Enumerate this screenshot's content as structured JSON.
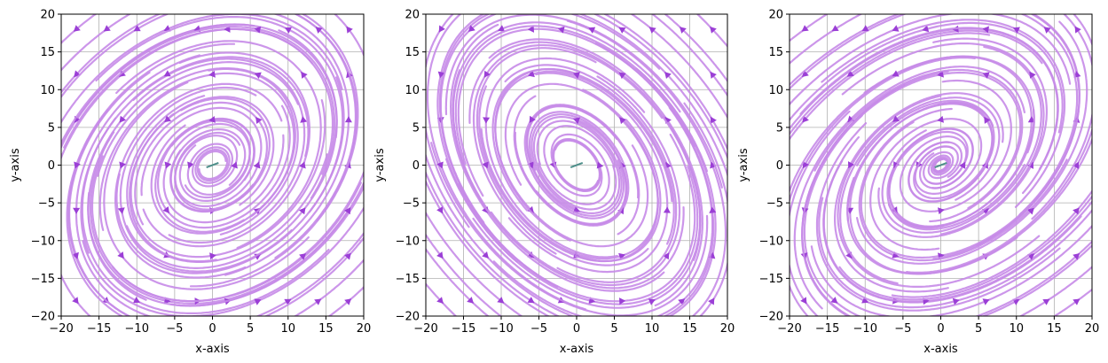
{
  "chart_data": [
    {
      "type": "streamplot",
      "xlabel": "x-axis",
      "ylabel": "y-axis",
      "xlim": [
        -20,
        20
      ],
      "ylim": [
        -20,
        20
      ],
      "xticks": [
        "−20",
        "−15",
        "−10",
        "−5",
        "0",
        "5",
        "10",
        "15",
        "20"
      ],
      "yticks": [
        "−20",
        "−15",
        "−10",
        "−5",
        "0",
        "5",
        "10",
        "15",
        "20"
      ],
      "grid": true,
      "field": {
        "A": [
          [
            0.35,
            -1.0
          ],
          [
            1.0,
            -0.15
          ]
        ]
      },
      "seeds": [
        [
          -18,
          -18
        ],
        [
          -14,
          -18
        ],
        [
          -10,
          -18
        ],
        [
          -6,
          -18
        ],
        [
          -2,
          -18
        ],
        [
          2,
          -18
        ],
        [
          6,
          -18
        ],
        [
          10,
          -18
        ],
        [
          14,
          -18
        ],
        [
          18,
          -18
        ],
        [
          -18,
          -12
        ],
        [
          -12,
          -12
        ],
        [
          -6,
          -12
        ],
        [
          0,
          -12
        ],
        [
          6,
          -12
        ],
        [
          12,
          -12
        ],
        [
          18,
          -12
        ],
        [
          -18,
          -6
        ],
        [
          -12,
          -6
        ],
        [
          -6,
          -6
        ],
        [
          0,
          -6
        ],
        [
          6,
          -6
        ],
        [
          12,
          -6
        ],
        [
          18,
          -6
        ],
        [
          -18,
          0
        ],
        [
          -12,
          0
        ],
        [
          -6,
          0
        ],
        [
          -3,
          0
        ],
        [
          3,
          0
        ],
        [
          6,
          0
        ],
        [
          12,
          0
        ],
        [
          18,
          0
        ],
        [
          -18,
          6
        ],
        [
          -12,
          6
        ],
        [
          -6,
          6
        ],
        [
          0,
          6
        ],
        [
          6,
          6
        ],
        [
          12,
          6
        ],
        [
          18,
          6
        ],
        [
          -18,
          12
        ],
        [
          -12,
          12
        ],
        [
          -6,
          12
        ],
        [
          0,
          12
        ],
        [
          6,
          12
        ],
        [
          12,
          12
        ],
        [
          18,
          12
        ],
        [
          -18,
          18
        ],
        [
          -14,
          18
        ],
        [
          -10,
          18
        ],
        [
          -6,
          18
        ],
        [
          -2,
          18
        ],
        [
          2,
          18
        ],
        [
          6,
          18
        ],
        [
          10,
          18
        ],
        [
          14,
          18
        ],
        [
          18,
          18
        ]
      ]
    },
    {
      "type": "streamplot",
      "xlabel": "x-axis",
      "ylabel": "y-axis",
      "xlim": [
        -20,
        20
      ],
      "ylim": [
        -20,
        20
      ],
      "xticks": [
        "−20",
        "−15",
        "−10",
        "−5",
        "0",
        "5",
        "10",
        "15",
        "20"
      ],
      "yticks": [
        "−20",
        "−15",
        "−10",
        "−5",
        "0",
        "5",
        "10",
        "15",
        "20"
      ],
      "grid": true,
      "field": {
        "A": [
          [
            -0.45,
            -1.0
          ],
          [
            1.2,
            0.35
          ]
        ]
      },
      "seeds": [
        [
          -18,
          -18
        ],
        [
          -14,
          -18
        ],
        [
          -10,
          -18
        ],
        [
          -6,
          -18
        ],
        [
          -2,
          -18
        ],
        [
          2,
          -18
        ],
        [
          6,
          -18
        ],
        [
          10,
          -18
        ],
        [
          14,
          -18
        ],
        [
          18,
          -18
        ],
        [
          -18,
          -12
        ],
        [
          -12,
          -12
        ],
        [
          -6,
          -12
        ],
        [
          0,
          -12
        ],
        [
          6,
          -12
        ],
        [
          12,
          -12
        ],
        [
          18,
          -12
        ],
        [
          -18,
          -6
        ],
        [
          -12,
          -6
        ],
        [
          -6,
          -6
        ],
        [
          0,
          -6
        ],
        [
          6,
          -6
        ],
        [
          12,
          -6
        ],
        [
          18,
          -6
        ],
        [
          -18,
          0
        ],
        [
          -12,
          0
        ],
        [
          -6,
          0
        ],
        [
          -3,
          0
        ],
        [
          3,
          0
        ],
        [
          6,
          0
        ],
        [
          12,
          0
        ],
        [
          18,
          0
        ],
        [
          -18,
          6
        ],
        [
          -12,
          6
        ],
        [
          -6,
          6
        ],
        [
          0,
          6
        ],
        [
          6,
          6
        ],
        [
          12,
          6
        ],
        [
          18,
          6
        ],
        [
          -18,
          12
        ],
        [
          -12,
          12
        ],
        [
          -6,
          12
        ],
        [
          0,
          12
        ],
        [
          6,
          12
        ],
        [
          12,
          12
        ],
        [
          18,
          12
        ],
        [
          -18,
          18
        ],
        [
          -14,
          18
        ],
        [
          -10,
          18
        ],
        [
          -6,
          18
        ],
        [
          -2,
          18
        ],
        [
          2,
          18
        ],
        [
          6,
          18
        ],
        [
          10,
          18
        ],
        [
          14,
          18
        ],
        [
          18,
          18
        ]
      ]
    },
    {
      "type": "streamplot",
      "xlabel": "x-axis",
      "ylabel": "y-axis",
      "xlim": [
        -20,
        20
      ],
      "ylim": [
        -20,
        20
      ],
      "xticks": [
        "−20",
        "−15",
        "−10",
        "−5",
        "0",
        "5",
        "10",
        "15",
        "20"
      ],
      "yticks": [
        "−20",
        "−15",
        "−10",
        "−5",
        "0",
        "5",
        "10",
        "15",
        "20"
      ],
      "grid": true,
      "field": {
        "A": [
          [
            0.55,
            -1.1
          ],
          [
            1.0,
            -0.2
          ]
        ]
      },
      "seeds": [
        [
          -18,
          -18
        ],
        [
          -14,
          -18
        ],
        [
          -10,
          -18
        ],
        [
          -6,
          -18
        ],
        [
          -2,
          -18
        ],
        [
          2,
          -18
        ],
        [
          6,
          -18
        ],
        [
          10,
          -18
        ],
        [
          14,
          -18
        ],
        [
          18,
          -18
        ],
        [
          -18,
          -12
        ],
        [
          -12,
          -12
        ],
        [
          -6,
          -12
        ],
        [
          0,
          -12
        ],
        [
          6,
          -12
        ],
        [
          12,
          -12
        ],
        [
          18,
          -12
        ],
        [
          -18,
          -6
        ],
        [
          -12,
          -6
        ],
        [
          -6,
          -6
        ],
        [
          0,
          -6
        ],
        [
          6,
          -6
        ],
        [
          12,
          -6
        ],
        [
          18,
          -6
        ],
        [
          -18,
          0
        ],
        [
          -12,
          0
        ],
        [
          -6,
          0
        ],
        [
          -3,
          0
        ],
        [
          3,
          0
        ],
        [
          6,
          0
        ],
        [
          12,
          0
        ],
        [
          18,
          0
        ],
        [
          -18,
          6
        ],
        [
          -12,
          6
        ],
        [
          -6,
          6
        ],
        [
          0,
          6
        ],
        [
          6,
          6
        ],
        [
          12,
          6
        ],
        [
          18,
          6
        ],
        [
          -18,
          12
        ],
        [
          -12,
          12
        ],
        [
          -6,
          12
        ],
        [
          0,
          12
        ],
        [
          6,
          12
        ],
        [
          12,
          12
        ],
        [
          18,
          12
        ],
        [
          -18,
          18
        ],
        [
          -14,
          18
        ],
        [
          -10,
          18
        ],
        [
          -6,
          18
        ],
        [
          -2,
          18
        ],
        [
          2,
          18
        ],
        [
          6,
          18
        ],
        [
          10,
          18
        ],
        [
          14,
          18
        ],
        [
          18,
          18
        ]
      ]
    }
  ],
  "colors": {
    "stream": "#c68be8",
    "arrow": "#9b3fd6",
    "center_marker": "#4e8f8a"
  }
}
